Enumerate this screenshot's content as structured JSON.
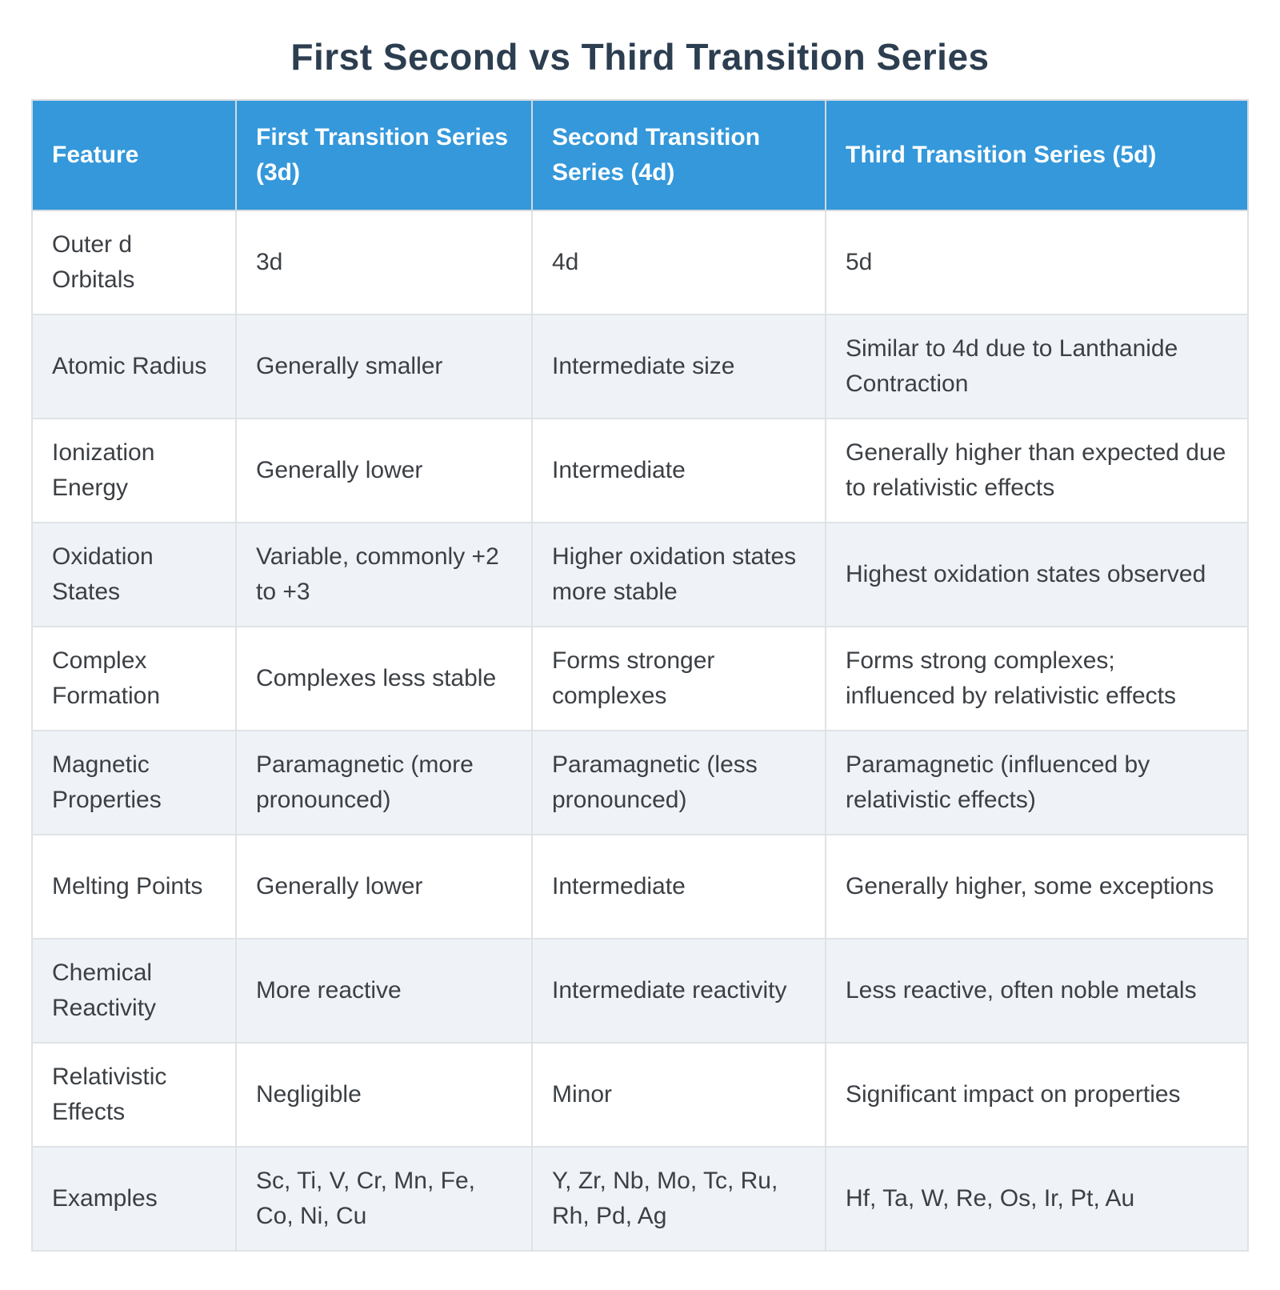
{
  "title": "First Second vs Third Transition Series",
  "colors": {
    "header_bg": "#3498db",
    "header_text": "#ffffff",
    "row_bg": "#ffffff",
    "row_alt_bg": "#eff2f7",
    "border": "#dfe2e6",
    "title_text": "#2c3e50",
    "body_text": "#3c4045"
  },
  "table": {
    "columns": [
      "Feature",
      "First Transition Series (3d)",
      "Second Transition Series (4d)",
      "Third Transition Series (5d)"
    ],
    "rows": [
      [
        "Outer d Orbitals",
        "3d",
        "4d",
        "5d"
      ],
      [
        "Atomic Radius",
        "Generally smaller",
        "Intermediate size",
        "Similar to 4d due to Lanthanide Contraction"
      ],
      [
        "Ionization Energy",
        "Generally lower",
        "Intermediate",
        "Generally higher than expected due to relativistic effects"
      ],
      [
        "Oxidation States",
        "Variable, commonly +2 to +3",
        "Higher oxidation states more stable",
        "Highest oxidation states observed"
      ],
      [
        "Complex Formation",
        "Complexes less stable",
        "Forms stronger complexes",
        "Forms strong complexes; influenced by relativistic effects"
      ],
      [
        "Magnetic Properties",
        "Paramagnetic (more pronounced)",
        "Paramagnetic (less pronounced)",
        "Paramagnetic (influenced by relativistic effects)"
      ],
      [
        "Melting Points",
        "Generally lower",
        "Intermediate",
        "Generally higher, some exceptions"
      ],
      [
        "Chemical Reactivity",
        "More reactive",
        "Intermediate reactivity",
        "Less reactive, often noble metals"
      ],
      [
        "Relativistic Effects",
        "Negligible",
        "Minor",
        "Significant impact on properties"
      ],
      [
        "Examples",
        "Sc, Ti, V, Cr, Mn, Fe, Co, Ni, Cu",
        "Y, Zr, Nb, Mo, Tc, Ru, Rh, Pd, Ag",
        "Hf, Ta, W, Re, Os, Ir, Pt, Au"
      ]
    ]
  }
}
